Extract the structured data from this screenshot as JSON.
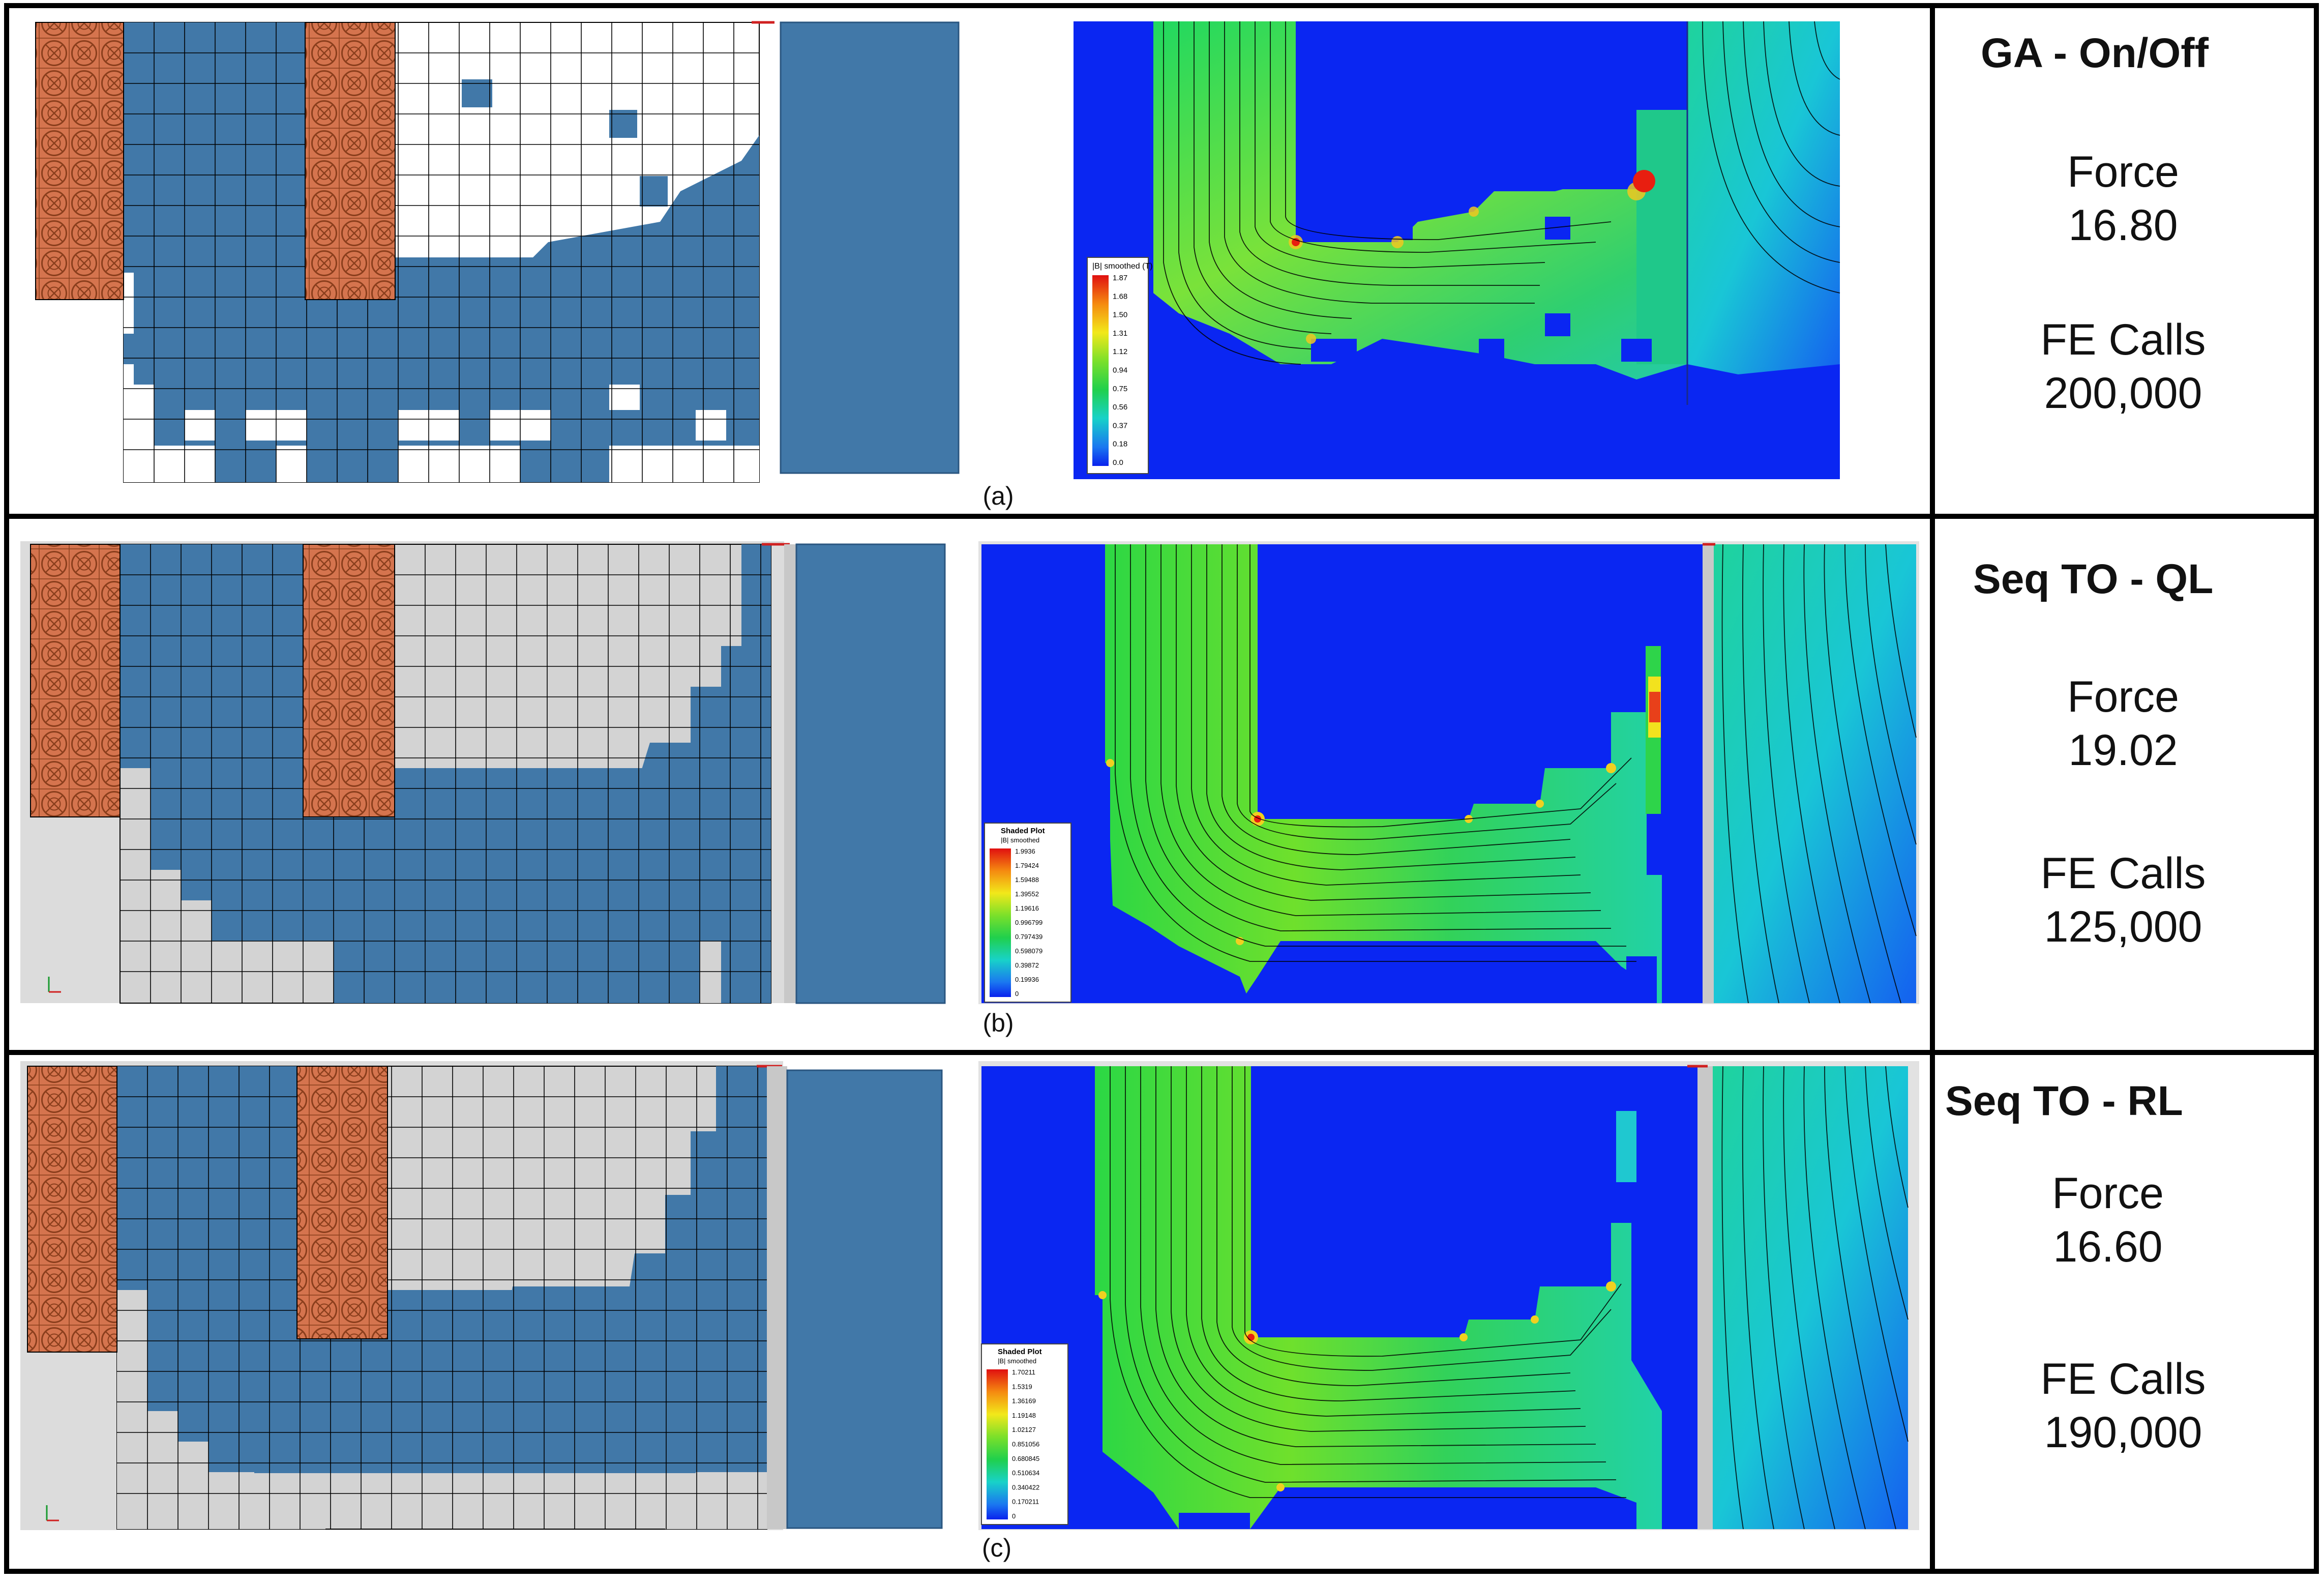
{
  "rows": [
    {
      "caption": "(a)",
      "method": "GA - On/Off",
      "force_label": "Force",
      "force_value": "16.80",
      "calls_label": "FE Calls",
      "calls_value": "200,000",
      "legend_title": "|B| smoothed (T)",
      "legend_values": [
        "1.87",
        "1.68",
        "1.50",
        "1.31",
        "1.12",
        "0.94",
        "0.75",
        "0.56",
        "0.37",
        "0.18",
        "0.0"
      ]
    },
    {
      "caption": "(b)",
      "method": "Seq TO - QL",
      "force_label": "Force",
      "force_value": "19.02",
      "calls_label": "FE Calls",
      "calls_value": "125,000",
      "legend_title": "Shaded Plot",
      "legend_sub": "|B| smoothed",
      "legend_values": [
        "1.9936",
        "1.79424",
        "1.59488",
        "1.39552",
        "1.19616",
        "0.996799",
        "0.797439",
        "0.598079",
        "0.39872",
        "0.19936",
        "0"
      ]
    },
    {
      "caption": "(c)",
      "method": "Seq TO - RL",
      "force_label": "Force",
      "force_value": "16.60",
      "calls_label": "FE Calls",
      "calls_value": "190,000",
      "legend_title": "Shaded Plot",
      "legend_sub": "|B| smoothed",
      "legend_values": [
        "1.70211",
        "1.5319",
        "1.36169",
        "1.19148",
        "1.02127",
        "0.851056",
        "0.680845",
        "0.510634",
        "0.340422",
        "0.170211",
        "0"
      ]
    }
  ],
  "colors": {
    "steel": "#4178a8",
    "coil": "#d5744e",
    "void_a": "#ffffff",
    "void_b": "#d3d3d3",
    "field_low": "#0a26f2",
    "field_mid": "#28d64e",
    "field_high": "#e81e10"
  },
  "icons": [
    "coil-cross-icon",
    "axis-triad-icon"
  ]
}
